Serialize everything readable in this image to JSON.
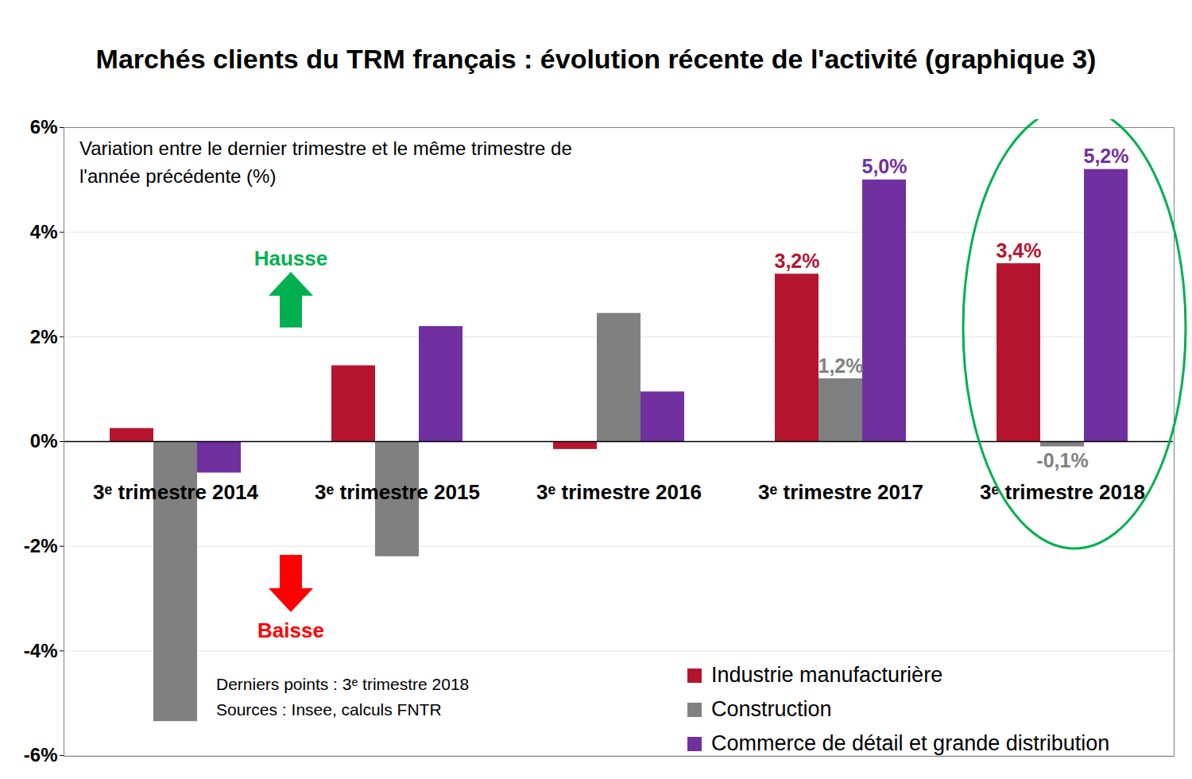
{
  "chart_data": {
    "type": "bar",
    "title": "Marchés clients du TRM français : évolution récente de l'activité (graphique 3)",
    "subtitle": "Variation entre le dernier trimestre et le même trimestre de l'année précédente (%)",
    "categories": [
      "3ᵉ trimestre 2014",
      "3ᵉ trimestre 2015",
      "3ᵉ trimestre 2016",
      "3ᵉ trimestre 2017",
      "3ᵉ trimestre 2018"
    ],
    "series": [
      {
        "name": "Industrie manufacturière",
        "color": "#b5142f",
        "values": [
          0.25,
          1.45,
          -0.15,
          3.2,
          3.4
        ],
        "value_labels": [
          null,
          null,
          null,
          "3,2%",
          "3,4%"
        ]
      },
      {
        "name": "Construction",
        "color": "#808080",
        "values": [
          -5.35,
          -2.2,
          2.45,
          1.2,
          -0.1
        ],
        "value_labels": [
          null,
          null,
          null,
          "1,2%",
          "-0,1%"
        ]
      },
      {
        "name": "Commerce de détail et grande distribution",
        "color": "#7030a0",
        "values": [
          -0.6,
          2.2,
          0.95,
          5.0,
          5.2
        ],
        "value_labels": [
          null,
          null,
          null,
          "5,0%",
          "5,2%"
        ]
      }
    ],
    "ylim": [
      -6,
      6
    ],
    "yticks": [
      {
        "value": -6,
        "label": "-6%"
      },
      {
        "value": -4,
        "label": "-4%"
      },
      {
        "value": -2,
        "label": "-2%"
      },
      {
        "value": 0,
        "label": "0%"
      },
      {
        "value": 2,
        "label": "2%"
      },
      {
        "value": 4,
        "label": "4%"
      },
      {
        "value": 6,
        "label": "6%"
      }
    ],
    "grid": true,
    "legend": "bottom right",
    "data_labels": true,
    "annotations": [
      "Hausse",
      "Baisse"
    ],
    "notes": [
      "Derniers points : 3ᵉ trimestre 2018",
      "Sources : Insee, calculs FNTR"
    ]
  }
}
